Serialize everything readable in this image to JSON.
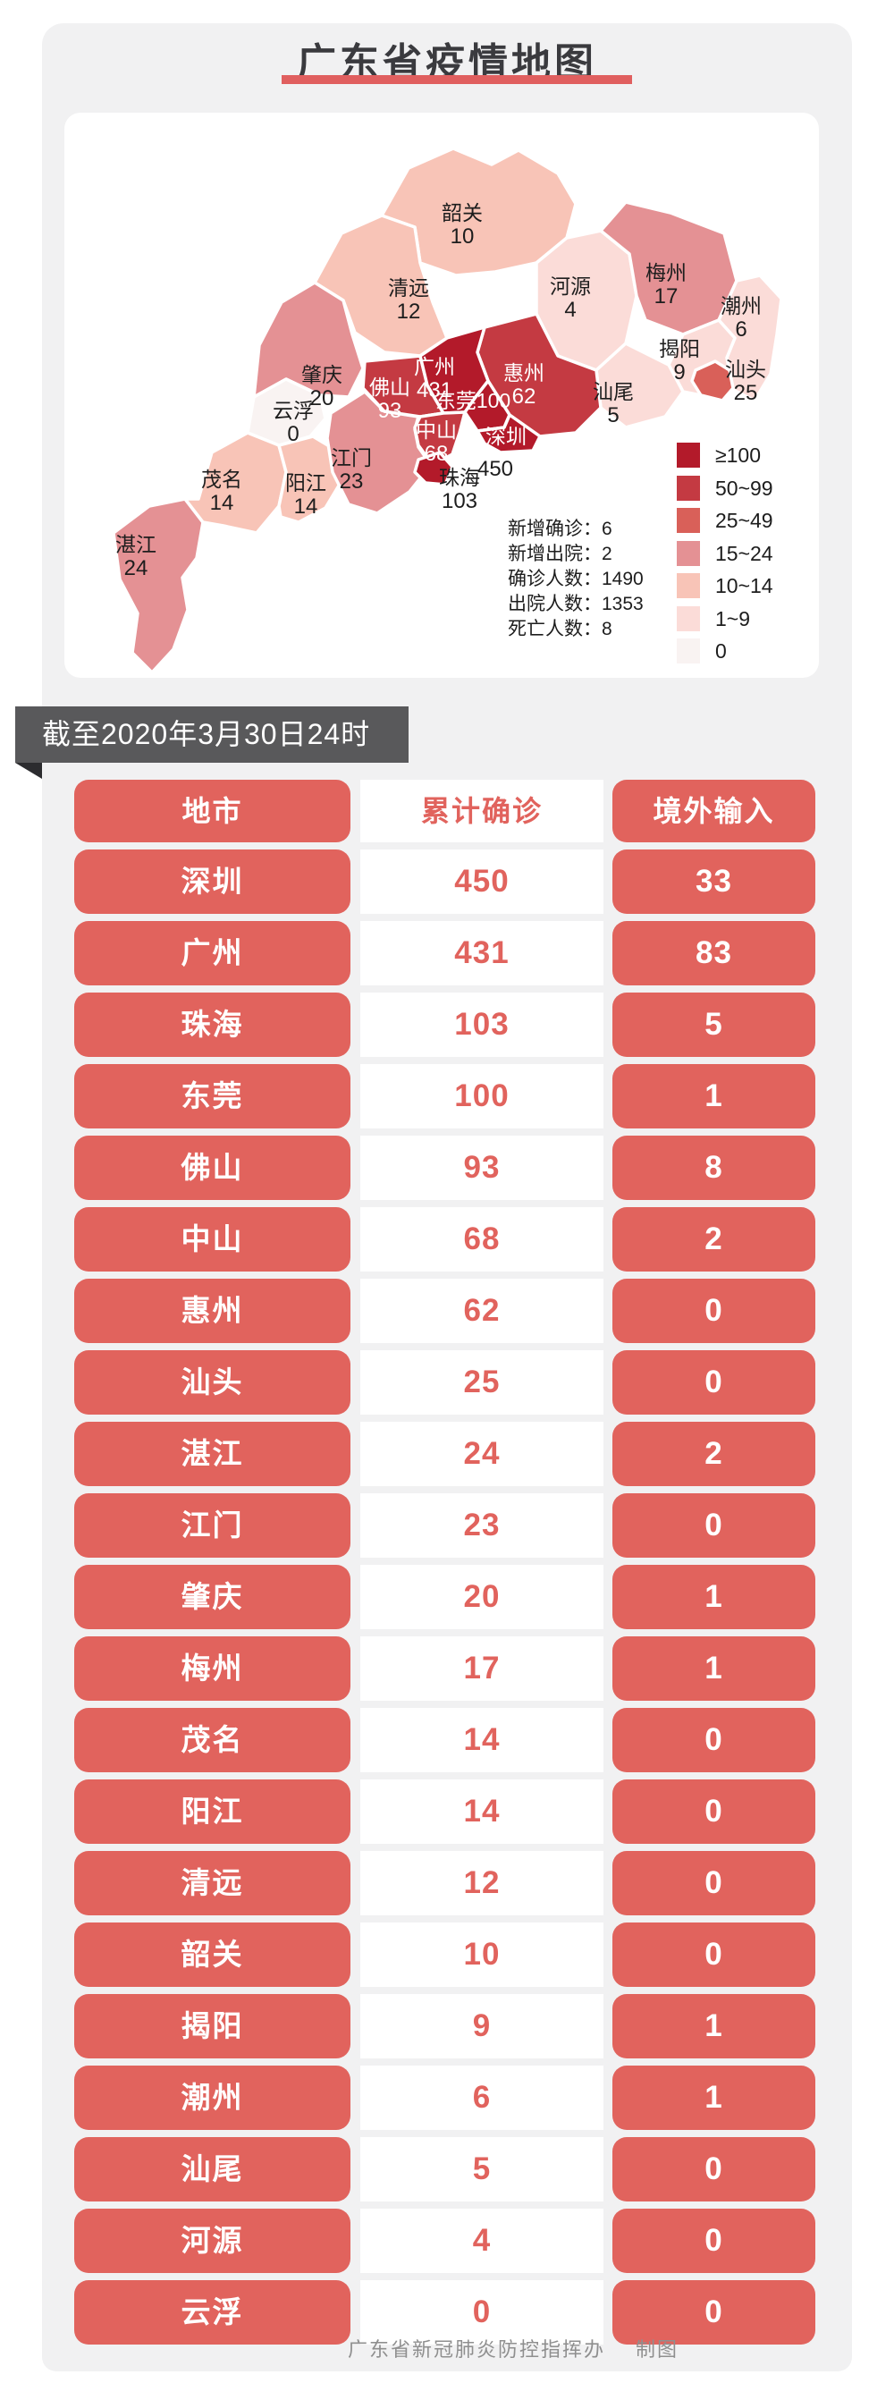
{
  "page": {
    "title": "广东省疫情地图",
    "banner": "截至2020年3月30日24时",
    "footer_org": "广东省新冠肺炎防控指挥办",
    "footer_credit": "制图"
  },
  "colors": {
    "accent_red": "#e05f5f",
    "table_red": "#e1635d",
    "ribbon_gray": "#59595b",
    "card_gray": "#f1f1f2",
    "bins": {
      "b100": "#b31a2a",
      "b50": "#c43a42",
      "b25": "#d96059",
      "b15": "#e49194",
      "b10": "#f8c4b7",
      "b1": "#fbdcd8",
      "b0": "#f9f3f2"
    }
  },
  "map_card": {
    "stats": [
      "新增确诊：6",
      "新增出院：2",
      "确诊人数：1490",
      "出院人数：1353",
      "死亡人数：8"
    ],
    "legend": [
      {
        "label": "≥100",
        "bin": "b100"
      },
      {
        "label": "50~99",
        "bin": "b50"
      },
      {
        "label": "25~49",
        "bin": "b25"
      },
      {
        "label": "15~24",
        "bin": "b15"
      },
      {
        "label": "10~14",
        "bin": "b10"
      },
      {
        "label": "1~9",
        "bin": "b1"
      },
      {
        "label": "0",
        "bin": "b0"
      }
    ],
    "regions": [
      {
        "id": "shaoguan",
        "name": "韶关",
        "value": "10",
        "bin": "b10",
        "label": "dark"
      },
      {
        "id": "qingyuan",
        "name": "清远",
        "value": "12",
        "bin": "b10",
        "label": "dark"
      },
      {
        "id": "heyuan",
        "name": "河源",
        "value": "4",
        "bin": "b1",
        "label": "dark"
      },
      {
        "id": "meizhou",
        "name": "梅州",
        "value": "17",
        "bin": "b15",
        "label": "dark"
      },
      {
        "id": "chaozhou",
        "name": "潮州",
        "value": "6",
        "bin": "b1",
        "label": "dark"
      },
      {
        "id": "jieyang",
        "name": "揭阳",
        "value": "9",
        "bin": "b1",
        "label": "dark"
      },
      {
        "id": "shanwei",
        "name": "汕尾",
        "value": "5",
        "bin": "b1",
        "label": "dark"
      },
      {
        "id": "zhaoqing",
        "name": "肇庆",
        "value": "20",
        "bin": "b15",
        "label": "dark"
      },
      {
        "id": "yunfu",
        "name": "云浮",
        "value": "0",
        "bin": "b0",
        "label": "dark"
      },
      {
        "id": "zhanjiang",
        "name": "湛江",
        "value": "24",
        "bin": "b15",
        "label": "dark"
      },
      {
        "id": "maoming",
        "name": "茂名",
        "value": "14",
        "bin": "b10",
        "label": "dark"
      },
      {
        "id": "yangjiang",
        "name": "阳江",
        "value": "14",
        "bin": "b10",
        "label": "dark"
      },
      {
        "id": "jiangmen",
        "name": "江门",
        "value": "23",
        "bin": "b15",
        "label": "dark"
      },
      {
        "id": "huizhou",
        "name": "惠州",
        "value": "62",
        "bin": "b50",
        "label": "light"
      },
      {
        "id": "foshan",
        "name": "佛山",
        "value": "93",
        "bin": "b50",
        "label": "light"
      },
      {
        "id": "guangzhou",
        "name": "广州",
        "value": "431",
        "bin": "b100",
        "label": "light"
      },
      {
        "id": "dongguan",
        "name": "东莞",
        "value": "100",
        "bin": "b100",
        "label": "light"
      },
      {
        "id": "zhongshan",
        "name": "中山",
        "value": "68",
        "bin": "b50",
        "label": "light"
      },
      {
        "id": "shenzhen",
        "name": "深圳",
        "value": "450",
        "bin": "b100",
        "label": "mixed"
      },
      {
        "id": "zhuhai",
        "name": "珠海",
        "value": "103",
        "bin": "b100",
        "label": "dark"
      },
      {
        "id": "shantou",
        "name": "汕头",
        "value": "25",
        "bin": "b25",
        "label": "dark"
      }
    ]
  },
  "table": {
    "headers": [
      "地市",
      "累计确诊",
      "境外输入"
    ],
    "rows": [
      {
        "city": "深圳",
        "confirmed": "450",
        "imported": "33"
      },
      {
        "city": "广州",
        "confirmed": "431",
        "imported": "83"
      },
      {
        "city": "珠海",
        "confirmed": "103",
        "imported": "5"
      },
      {
        "city": "东莞",
        "confirmed": "100",
        "imported": "1"
      },
      {
        "city": "佛山",
        "confirmed": "93",
        "imported": "8"
      },
      {
        "city": "中山",
        "confirmed": "68",
        "imported": "2"
      },
      {
        "city": "惠州",
        "confirmed": "62",
        "imported": "0"
      },
      {
        "city": "汕头",
        "confirmed": "25",
        "imported": "0"
      },
      {
        "city": "湛江",
        "confirmed": "24",
        "imported": "2"
      },
      {
        "city": "江门",
        "confirmed": "23",
        "imported": "0"
      },
      {
        "city": "肇庆",
        "confirmed": "20",
        "imported": "1"
      },
      {
        "city": "梅州",
        "confirmed": "17",
        "imported": "1"
      },
      {
        "city": "茂名",
        "confirmed": "14",
        "imported": "0"
      },
      {
        "city": "阳江",
        "confirmed": "14",
        "imported": "0"
      },
      {
        "city": "清远",
        "confirmed": "12",
        "imported": "0"
      },
      {
        "city": "韶关",
        "confirmed": "10",
        "imported": "0"
      },
      {
        "city": "揭阳",
        "confirmed": "9",
        "imported": "1"
      },
      {
        "city": "潮州",
        "confirmed": "6",
        "imported": "1"
      },
      {
        "city": "汕尾",
        "confirmed": "5",
        "imported": "0"
      },
      {
        "city": "河源",
        "confirmed": "4",
        "imported": "0"
      },
      {
        "city": "云浮",
        "confirmed": "0",
        "imported": "0"
      }
    ]
  },
  "chart_data": [
    {
      "type": "heatmap",
      "subtype": "choropleth-map",
      "title": "广东省疫情地图",
      "as_of": "截至2020年3月30日24时",
      "legend_position": "right",
      "legend_bins": [
        "≥100",
        "50~99",
        "25~49",
        "15~24",
        "10~14",
        "1~9",
        "0"
      ],
      "regions": [
        {
          "name": "深圳",
          "confirmed": 450
        },
        {
          "name": "广州",
          "confirmed": 431
        },
        {
          "name": "珠海",
          "confirmed": 103
        },
        {
          "name": "东莞",
          "confirmed": 100
        },
        {
          "name": "佛山",
          "confirmed": 93
        },
        {
          "name": "中山",
          "confirmed": 68
        },
        {
          "name": "惠州",
          "confirmed": 62
        },
        {
          "name": "汕头",
          "confirmed": 25
        },
        {
          "name": "湛江",
          "confirmed": 24
        },
        {
          "name": "江门",
          "confirmed": 23
        },
        {
          "name": "肇庆",
          "confirmed": 20
        },
        {
          "name": "梅州",
          "confirmed": 17
        },
        {
          "name": "茂名",
          "confirmed": 14
        },
        {
          "name": "阳江",
          "confirmed": 14
        },
        {
          "name": "清远",
          "confirmed": 12
        },
        {
          "name": "韶关",
          "confirmed": 10
        },
        {
          "name": "揭阳",
          "confirmed": 9
        },
        {
          "name": "潮州",
          "confirmed": 6
        },
        {
          "name": "汕尾",
          "confirmed": 5
        },
        {
          "name": "河源",
          "confirmed": 4
        },
        {
          "name": "云浮",
          "confirmed": 0
        }
      ],
      "annotations": {
        "新增确诊": 6,
        "新增出院": 2,
        "确诊人数": 1490,
        "出院人数": 1353,
        "死亡人数": 8
      }
    },
    {
      "type": "table",
      "columns": [
        "地市",
        "累计确诊",
        "境外输入"
      ],
      "rows": [
        [
          "深圳",
          450,
          33
        ],
        [
          "广州",
          431,
          83
        ],
        [
          "珠海",
          103,
          5
        ],
        [
          "东莞",
          100,
          1
        ],
        [
          "佛山",
          93,
          8
        ],
        [
          "中山",
          68,
          2
        ],
        [
          "惠州",
          62,
          0
        ],
        [
          "汕头",
          25,
          0
        ],
        [
          "湛江",
          24,
          2
        ],
        [
          "江门",
          23,
          0
        ],
        [
          "肇庆",
          20,
          1
        ],
        [
          "梅州",
          17,
          1
        ],
        [
          "茂名",
          14,
          0
        ],
        [
          "阳江",
          14,
          0
        ],
        [
          "清远",
          12,
          0
        ],
        [
          "韶关",
          10,
          0
        ],
        [
          "揭阳",
          9,
          1
        ],
        [
          "潮州",
          6,
          1
        ],
        [
          "汕尾",
          5,
          0
        ],
        [
          "河源",
          4,
          0
        ],
        [
          "云浮",
          0,
          0
        ]
      ]
    }
  ]
}
